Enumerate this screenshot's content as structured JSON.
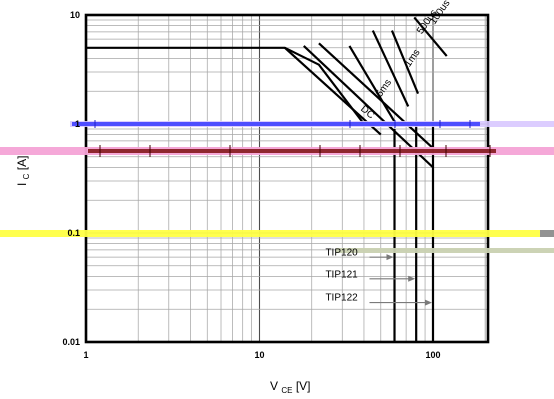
{
  "chart_data": {
    "type": "line",
    "x_scale": "log",
    "y_scale": "log",
    "xlim": [
      1,
      200
    ],
    "ylim": [
      0.01,
      10
    ],
    "x_ticks": [
      {
        "value": 1,
        "label": "1"
      },
      {
        "value": 10,
        "label": "10"
      },
      {
        "value": 100,
        "label": "100"
      }
    ],
    "y_ticks": [
      {
        "value": 0.01,
        "label": "0.01"
      },
      {
        "value": 0.1,
        "label": "0.1"
      },
      {
        "value": 1,
        "label": "1"
      },
      {
        "value": 10,
        "label": "10"
      }
    ],
    "xlabel": {
      "main": "V",
      "sub": "CE",
      "unit": "[V]"
    },
    "ylabel": {
      "main": "I",
      "sub": "C",
      "unit": "[A]"
    },
    "grid": true,
    "series": [
      {
        "name": "DC",
        "x": [
          1,
          14,
          22,
          40
        ],
        "y": [
          5,
          5,
          3.5,
          1
        ],
        "label_at": [
          38,
          1.35
        ],
        "label_angle": 40
      },
      {
        "name": "5ms",
        "x": [
          33,
          60
        ],
        "y": [
          5.2,
          1.05
        ],
        "label_at": [
          50,
          1.75
        ],
        "label_angle": -55
      },
      {
        "name": "1ms",
        "x": [
          45,
          72
        ],
        "y": [
          7.2,
          1.45
        ],
        "label_at": [
          73,
          3.3
        ],
        "label_angle": -55
      },
      {
        "name": "500us",
        "x": [
          58,
          82
        ],
        "y": [
          7.2,
          1.9
        ],
        "label_at": [
          86,
          6.6
        ],
        "label_angle": -55
      },
      {
        "name": "100us",
        "x": [
          78,
          120
        ],
        "y": [
          9.5,
          4.2
        ],
        "label_at": [
          102,
          8.1
        ],
        "label_angle": -55
      },
      {
        "x": [
          14,
          50
        ],
        "y": [
          5,
          0.8
        ]
      },
      {
        "x": [
          18,
          100
        ],
        "y": [
          5.2,
          0.4
        ]
      },
      {
        "x": [
          22,
          100
        ],
        "y": [
          5.5,
          0.6
        ]
      }
    ],
    "vertical_limits": [
      {
        "name": "TIP120",
        "x": 60,
        "y_from": 0.01,
        "y_to": 0.9
      },
      {
        "name": "TIP121",
        "x": 80,
        "y_from": 0.01,
        "y_to": 1.0
      },
      {
        "name": "TIP122",
        "x": 100,
        "y_from": 0.01,
        "y_to": 1.0
      }
    ],
    "annotations": [
      {
        "text": "TIP120",
        "label_at": [
          24,
          0.062
        ],
        "arrow_to": [
          60,
          0.06
        ]
      },
      {
        "text": "TIP121",
        "label_at": [
          24,
          0.039
        ],
        "arrow_to": [
          80,
          0.038
        ]
      },
      {
        "text": "TIP122",
        "label_at": [
          24,
          0.024
        ],
        "arrow_to": [
          100,
          0.023
        ]
      }
    ],
    "artifact_colors": {
      "blue": "#4747ff",
      "lavender": "#d8c8ff",
      "pink": "#f4a3d6",
      "dark_red": "#7d1010",
      "yellow": "#ffff44",
      "olive": "#c9d1b1",
      "gray": "#8c8c8c"
    }
  }
}
